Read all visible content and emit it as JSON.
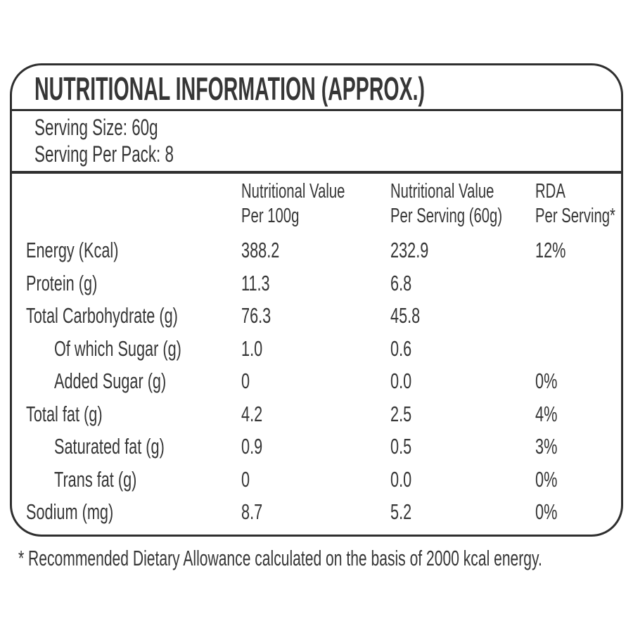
{
  "colors": {
    "text": "#363636",
    "border": "#2f2f2f",
    "bg": "#ffffff"
  },
  "panel": {
    "title": "NUTRITIONAL INFORMATION (APPROX.)",
    "serving": {
      "size_label": "Serving Size: 60g",
      "per_pack_label": "Serving Per Pack: 8"
    },
    "table": {
      "column_headers": [
        {
          "line1": "Nutritional Value",
          "line2": "Per 100g"
        },
        {
          "line1": "Nutritional Value",
          "line2": "Per Serving (60g)"
        },
        {
          "line1": "RDA",
          "line2": "Per Serving*"
        }
      ],
      "rows": [
        {
          "label": "Energy (Kcal)",
          "per100g": "388.2",
          "perServing": "232.9",
          "rda": "12%"
        },
        {
          "label": "Protein (g)",
          "per100g": "11.3",
          "perServing": "6.8",
          "rda": ""
        },
        {
          "label": "Total Carbohydrate (g)",
          "per100g": "76.3",
          "perServing": "45.8",
          "rda": ""
        },
        {
          "label": "Of which Sugar (g)",
          "per100g": "1.0",
          "perServing": "0.6",
          "rda": ""
        },
        {
          "label": "Added Sugar (g)",
          "per100g": "0",
          "perServing": "0.0",
          "rda": "0%"
        },
        {
          "label": "Total fat (g)",
          "per100g": "4.2",
          "perServing": "2.5",
          "rda": "4%"
        },
        {
          "label": "Saturated fat (g)",
          "per100g": "0.9",
          "perServing": "0.5",
          "rda": "3%"
        },
        {
          "label": "Trans fat (g)",
          "per100g": "0",
          "perServing": "0.0",
          "rda": "0%"
        },
        {
          "label": "Sodium (mg)",
          "per100g": "8.7",
          "perServing": "5.2",
          "rda": "0%"
        }
      ]
    },
    "footnote": "* Recommended Dietary Allowance calculated on the basis of 2000 kcal energy."
  }
}
